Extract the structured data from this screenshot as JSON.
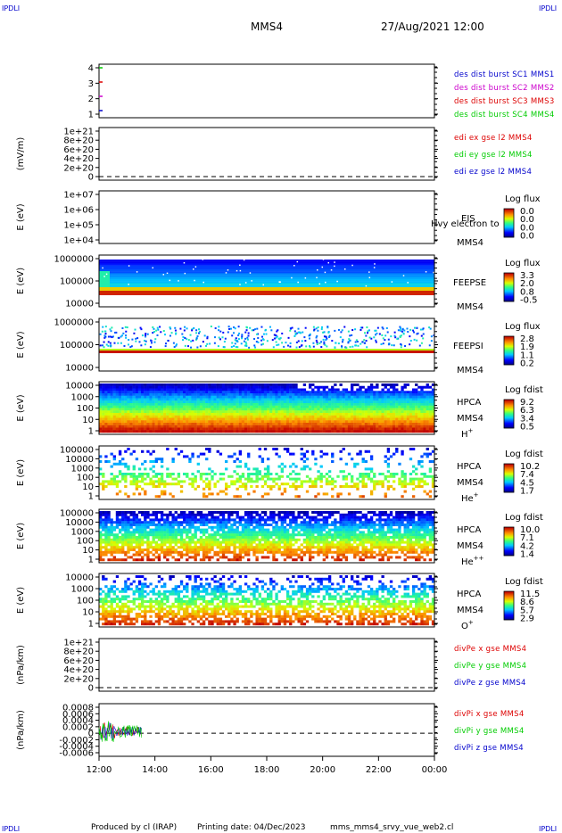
{
  "corners": {
    "tl": "IPDLI",
    "tr": "IPDLI",
    "bl": "IPDLI",
    "br": "IPDLI"
  },
  "header": {
    "mission": "MMS4",
    "datetime": "27/Aug/2021 12:00"
  },
  "footer": {
    "produced_by": "Produced by cl (IRAP)",
    "printing_date": "Printing date: 04/Dec/2023",
    "script_name": "mms_mms4_srvy_vue_web2.cl"
  },
  "x_ticks": [
    "12:00",
    "14:00",
    "16:00",
    "18:00",
    "20:00",
    "22:00",
    "00:00"
  ],
  "colors": {
    "blue": "#0000cc",
    "magenta": "#cc00cc",
    "red": "#dd0000",
    "green": "#00cc00",
    "dark_blue": "#000099"
  },
  "chart_data": [
    {
      "type": "line",
      "ylabel": "",
      "y_ticks": [
        "4",
        "3",
        "2",
        "1"
      ],
      "legend": [
        "des dist burst SC1 MMS1",
        "des dist burst SC2 MMS2",
        "des dist burst SC3 MMS3",
        "des dist burst SC4 MMS4"
      ]
    },
    {
      "type": "line",
      "ylabel": "(mV/m)",
      "y_ticks": [
        "1e+21",
        "8e+20",
        "6e+20",
        "4e+20",
        "2e+20",
        "0"
      ],
      "legend": [
        "edi ex gse l2 MMS4",
        "edi ey gse l2 MMS4",
        "edi ez gse l2 MMS4"
      ]
    },
    {
      "type": "heatmap",
      "ylabel": "E (eV)",
      "y_ticks": [
        "1e+07",
        "1e+06",
        "1e+05",
        "1e+04"
      ],
      "instrument": "EIS",
      "species": "Hvy electron to",
      "sc": "MMS4",
      "cbar_title": "Log flux",
      "cbar_ticks": [
        "0.0",
        "0.0",
        "0.0",
        "0.0"
      ]
    },
    {
      "type": "heatmap",
      "ylabel": "E (eV)",
      "y_ticks": [
        "1000000",
        "100000",
        "10000"
      ],
      "instrument": "FEEPSE",
      "sc": "MMS4",
      "cbar_title": "Log flux",
      "cbar_ticks": [
        "3.3",
        "2.0",
        "0.8",
        "-0.5"
      ]
    },
    {
      "type": "heatmap",
      "ylabel": "E (eV)",
      "y_ticks": [
        "1000000",
        "100000",
        "10000"
      ],
      "instrument": "FEEPSI",
      "sc": "MMS4",
      "cbar_title": "Log flux",
      "cbar_ticks": [
        "2.8",
        "1.9",
        "1.1",
        "0.2"
      ]
    },
    {
      "type": "heatmap",
      "ylabel": "E (eV)",
      "y_ticks": [
        "10000",
        "1000",
        "100",
        "10",
        "1"
      ],
      "instrument": "HPCA",
      "sc": "MMS4",
      "species": "H+",
      "cbar_title": "Log fdist",
      "cbar_ticks": [
        "9.2",
        "6.3",
        "3.4",
        "0.5"
      ]
    },
    {
      "type": "heatmap",
      "ylabel": "E (eV)",
      "y_ticks": [
        "100000",
        "10000",
        "1000",
        "100",
        "10",
        "1"
      ],
      "instrument": "HPCA",
      "sc": "MMS4",
      "species": "He+",
      "cbar_title": "Log fdist",
      "cbar_ticks": [
        "10.2",
        "7.4",
        "4.5",
        "1.7"
      ]
    },
    {
      "type": "heatmap",
      "ylabel": "E (eV)",
      "y_ticks": [
        "100000",
        "10000",
        "1000",
        "100",
        "10",
        "1"
      ],
      "instrument": "HPCA",
      "sc": "MMS4",
      "species": "He++",
      "cbar_title": "Log fdist",
      "cbar_ticks": [
        "10.0",
        "7.1",
        "4.2",
        "1.4"
      ]
    },
    {
      "type": "heatmap",
      "ylabel": "E (eV)",
      "y_ticks": [
        "10000",
        "1000",
        "100",
        "10",
        "1"
      ],
      "instrument": "HPCA",
      "sc": "MMS4",
      "species": "O+",
      "cbar_title": "Log fdist",
      "cbar_ticks": [
        "11.5",
        "8.6",
        "5.7",
        "2.9"
      ]
    },
    {
      "type": "line",
      "ylabel": "(nPa/km)",
      "y_ticks": [
        "1e+21",
        "8e+20",
        "6e+20",
        "4e+20",
        "2e+20",
        "0"
      ],
      "legend": [
        "divPe x gse MMS4",
        "divPe y gse MMS4",
        "divPe z gse MMS4"
      ]
    },
    {
      "type": "line",
      "ylabel": "(nPa/km)",
      "y_ticks": [
        "0.0008",
        "0.0006",
        "0.0004",
        "0.0002",
        "0",
        "-0.0002",
        "-0.0004",
        "-0.0006"
      ],
      "legend": [
        "divPi x gse MMS4",
        "divPi y gse MMS4",
        "divPi z gse MMS4"
      ]
    }
  ]
}
